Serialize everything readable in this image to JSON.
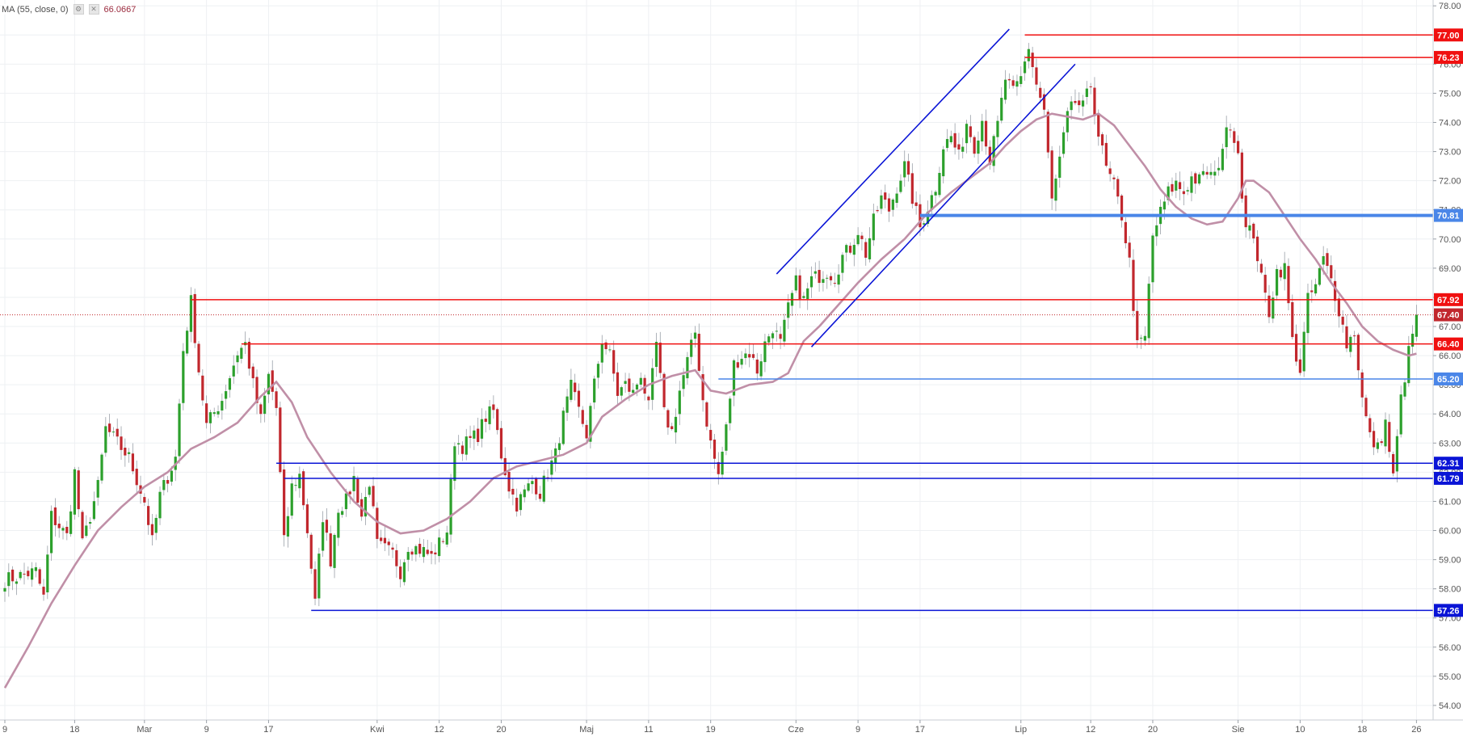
{
  "indicator": {
    "label": "MA (55, close, 0)",
    "value": "66.0667",
    "settings_icon": "gear-icon",
    "close_icon": "close-icon"
  },
  "colors": {
    "bull": "#2ca02c",
    "bear": "#c1272d",
    "ma": "#c08fa7",
    "resistance": "#f01010",
    "support": "#0a14d6",
    "support_light": "#4a86e8",
    "current_price_line": "#c1272d"
  },
  "chart_data": {
    "type": "candlestick",
    "title": "",
    "xlabel": "",
    "ylabel": "",
    "ylim": [
      53.5,
      78.2
    ],
    "y_ticks": [
      54,
      55,
      56,
      57,
      58,
      59,
      60,
      61,
      62,
      63,
      64,
      65,
      66,
      67,
      68,
      69,
      70,
      71,
      72,
      73,
      74,
      75,
      76,
      77,
      78
    ],
    "y_tick_labels": [
      "54.00",
      "55.00",
      "56.00",
      "57.00",
      "58.00",
      "59.00",
      "60.00",
      "61.00",
      "62.00",
      "63.00",
      "64.00",
      "65.00",
      "66.00",
      "67.00",
      "68.00",
      "69.00",
      "70.00",
      "71.00",
      "72.00",
      "73.00",
      "74.00",
      "75.00",
      "76.00",
      "77.00",
      "78.00"
    ],
    "x_ticks": [
      {
        "label": "9",
        "day": 0
      },
      {
        "label": "18",
        "day": 9
      },
      {
        "label": "Mar",
        "day": 18
      },
      {
        "label": "9",
        "day": 26
      },
      {
        "label": "17",
        "day": 34
      },
      {
        "label": "Kwi",
        "day": 48
      },
      {
        "label": "12",
        "day": 56
      },
      {
        "label": "20",
        "day": 64
      },
      {
        "label": "Maj",
        "day": 75
      },
      {
        "label": "11",
        "day": 83
      },
      {
        "label": "19",
        "day": 91
      },
      {
        "label": "Cze",
        "day": 102
      },
      {
        "label": "9",
        "day": 110
      },
      {
        "label": "17",
        "day": 118
      },
      {
        "label": "Lip",
        "day": 131
      },
      {
        "label": "12",
        "day": 140
      },
      {
        "label": "20",
        "day": 148
      },
      {
        "label": "Sie",
        "day": 159
      },
      {
        "label": "10",
        "day": 167
      },
      {
        "label": "18",
        "day": 175
      },
      {
        "label": "26",
        "day": 182
      }
    ],
    "x_range": [
      0,
      183
    ],
    "close_path": [
      [
        0,
        58.3
      ],
      [
        4,
        58.6
      ],
      [
        5,
        57.7
      ],
      [
        6,
        60.5
      ],
      [
        8,
        59.8
      ],
      [
        9,
        62.0
      ],
      [
        10,
        59.5
      ],
      [
        12,
        61.5
      ],
      [
        13,
        63.5
      ],
      [
        16,
        62.5
      ],
      [
        18,
        61.0
      ],
      [
        19,
        59.6
      ],
      [
        20,
        61.2
      ],
      [
        22,
        62.5
      ],
      [
        23,
        66.2
      ],
      [
        24,
        67.85
      ],
      [
        25,
        65.5
      ],
      [
        26,
        63.6
      ],
      [
        28,
        64.5
      ],
      [
        30,
        66.1
      ],
      [
        31,
        66.4
      ],
      [
        32,
        65.0
      ],
      [
        33,
        63.8
      ],
      [
        34,
        65.3
      ],
      [
        35,
        64.2
      ],
      [
        36,
        59.6
      ],
      [
        37,
        61.5
      ],
      [
        38,
        61.9
      ],
      [
        39,
        60.0
      ],
      [
        40,
        57.5
      ],
      [
        41,
        60.5
      ],
      [
        42,
        59.0
      ],
      [
        43,
        60.8
      ],
      [
        44,
        61.0
      ],
      [
        45,
        61.8
      ],
      [
        46,
        60.5
      ],
      [
        47,
        61.7
      ],
      [
        48,
        59.5
      ],
      [
        50,
        59.2
      ],
      [
        51,
        58.6
      ],
      [
        52,
        59.5
      ],
      [
        54,
        59.3
      ],
      [
        55,
        59.1
      ],
      [
        57,
        60.0
      ],
      [
        58,
        63.1
      ],
      [
        59,
        62.9
      ],
      [
        61,
        63.3
      ],
      [
        62,
        63.9
      ],
      [
        63,
        64.1
      ],
      [
        64,
        62.6
      ],
      [
        65,
        61.5
      ],
      [
        66,
        60.9
      ],
      [
        68,
        61.7
      ],
      [
        69,
        61.3
      ],
      [
        70,
        62.0
      ],
      [
        71,
        62.6
      ],
      [
        72,
        63.9
      ],
      [
        73,
        64.9
      ],
      [
        74,
        64.1
      ],
      [
        75,
        63.3
      ],
      [
        76,
        65.0
      ],
      [
        77,
        66.55
      ],
      [
        78,
        66.0
      ],
      [
        79,
        64.7
      ],
      [
        80,
        65.0
      ],
      [
        81,
        64.7
      ],
      [
        82,
        65.4
      ],
      [
        83,
        64.2
      ],
      [
        84,
        66.4
      ],
      [
        85,
        64.0
      ],
      [
        86,
        63.4
      ],
      [
        87,
        64.8
      ],
      [
        88,
        65.8
      ],
      [
        89,
        66.8
      ],
      [
        90,
        64.5
      ],
      [
        91,
        63.0
      ],
      [
        92,
        61.9
      ],
      [
        93,
        63.5
      ],
      [
        94,
        65.7
      ],
      [
        95,
        66.0
      ],
      [
        96,
        66.1
      ],
      [
        97,
        65.5
      ],
      [
        98,
        66.4
      ],
      [
        99,
        67.0
      ],
      [
        100,
        66.4
      ],
      [
        101,
        67.6
      ],
      [
        102,
        68.5
      ],
      [
        103,
        67.9
      ],
      [
        104,
        68.6
      ],
      [
        106,
        68.9
      ],
      [
        107,
        68.7
      ],
      [
        108,
        69.4
      ],
      [
        109,
        69.7
      ],
      [
        110,
        70.3
      ],
      [
        111,
        69.5
      ],
      [
        112,
        70.6
      ],
      [
        113,
        71.4
      ],
      [
        114,
        71.0
      ],
      [
        115,
        71.8
      ],
      [
        116,
        72.5
      ],
      [
        117,
        71.4
      ],
      [
        118,
        70.4
      ],
      [
        119,
        71.1
      ],
      [
        120,
        71.8
      ],
      [
        121,
        73.2
      ],
      [
        122,
        73.5
      ],
      [
        123,
        72.8
      ],
      [
        124,
        74.0
      ],
      [
        125,
        73.2
      ],
      [
        126,
        74.1
      ],
      [
        127,
        72.7
      ],
      [
        128,
        73.9
      ],
      [
        129,
        75.5
      ],
      [
        130,
        75.0
      ],
      [
        131,
        75.5
      ],
      [
        132,
        76.6
      ],
      [
        133,
        75.3
      ],
      [
        134,
        74.4
      ],
      [
        135,
        71.3
      ],
      [
        136,
        72.7
      ],
      [
        137,
        74.2
      ],
      [
        138,
        74.7
      ],
      [
        139,
        74.5
      ],
      [
        140,
        75.3
      ],
      [
        141,
        73.6
      ],
      [
        142,
        72.4
      ],
      [
        143,
        71.8
      ],
      [
        144,
        70.8
      ],
      [
        145,
        69.2
      ],
      [
        146,
        66.3
      ],
      [
        147,
        66.6
      ],
      [
        148,
        70.1
      ],
      [
        149,
        70.9
      ],
      [
        150,
        71.6
      ],
      [
        151,
        71.9
      ],
      [
        152,
        71.6
      ],
      [
        153,
        72.1
      ],
      [
        154,
        72.0
      ],
      [
        155,
        72.3
      ],
      [
        156,
        72.1
      ],
      [
        157,
        73.2
      ],
      [
        158,
        74.0
      ],
      [
        159,
        73.0
      ],
      [
        160,
        70.3
      ],
      [
        161,
        70.2
      ],
      [
        162,
        68.6
      ],
      [
        163,
        67.5
      ],
      [
        164,
        68.9
      ],
      [
        165,
        69.0
      ],
      [
        166,
        66.5
      ],
      [
        167,
        65.5
      ],
      [
        168,
        67.9
      ],
      [
        169,
        68.4
      ],
      [
        170,
        69.3
      ],
      [
        171,
        68.6
      ],
      [
        172,
        67.6
      ],
      [
        173,
        66.4
      ],
      [
        174,
        66.8
      ],
      [
        175,
        64.5
      ],
      [
        176,
        63.2
      ],
      [
        177,
        62.8
      ],
      [
        178,
        63.7
      ],
      [
        179,
        61.8
      ],
      [
        180,
        64.5
      ],
      [
        181,
        66.1
      ],
      [
        182,
        67.4
      ]
    ],
    "ma_path": [
      [
        0,
        54.6
      ],
      [
        3,
        56.0
      ],
      [
        6,
        57.5
      ],
      [
        9,
        58.8
      ],
      [
        12,
        60.0
      ],
      [
        15,
        60.8
      ],
      [
        18,
        61.5
      ],
      [
        21,
        62.0
      ],
      [
        24,
        62.8
      ],
      [
        27,
        63.2
      ],
      [
        30,
        63.7
      ],
      [
        33,
        64.6
      ],
      [
        35,
        65.1
      ],
      [
        37,
        64.4
      ],
      [
        39,
        63.2
      ],
      [
        42,
        62.0
      ],
      [
        45,
        61.0
      ],
      [
        48,
        60.3
      ],
      [
        51,
        59.9
      ],
      [
        54,
        60.0
      ],
      [
        57,
        60.4
      ],
      [
        60,
        61.0
      ],
      [
        63,
        61.8
      ],
      [
        66,
        62.2
      ],
      [
        69,
        62.4
      ],
      [
        72,
        62.6
      ],
      [
        75,
        63.0
      ],
      [
        77,
        63.9
      ],
      [
        80,
        64.5
      ],
      [
        83,
        65.0
      ],
      [
        86,
        65.3
      ],
      [
        89,
        65.5
      ],
      [
        91,
        64.8
      ],
      [
        93,
        64.7
      ],
      [
        96,
        65.0
      ],
      [
        99,
        65.1
      ],
      [
        101,
        65.4
      ],
      [
        103,
        66.5
      ],
      [
        105,
        67.0
      ],
      [
        107,
        67.6
      ],
      [
        110,
        68.5
      ],
      [
        113,
        69.3
      ],
      [
        116,
        70.0
      ],
      [
        119,
        70.9
      ],
      [
        122,
        71.6
      ],
      [
        125,
        72.2
      ],
      [
        127,
        72.6
      ],
      [
        129,
        73.2
      ],
      [
        131,
        73.7
      ],
      [
        133,
        74.1
      ],
      [
        135,
        74.3
      ],
      [
        137,
        74.2
      ],
      [
        139,
        74.1
      ],
      [
        141,
        74.3
      ],
      [
        143,
        73.9
      ],
      [
        145,
        73.2
      ],
      [
        147,
        72.5
      ],
      [
        149,
        71.7
      ],
      [
        151,
        71.1
      ],
      [
        153,
        70.7
      ],
      [
        155,
        70.5
      ],
      [
        157,
        70.6
      ],
      [
        159,
        71.4
      ],
      [
        160,
        72.0
      ],
      [
        161,
        72.0
      ],
      [
        163,
        71.6
      ],
      [
        165,
        70.8
      ],
      [
        167,
        70.0
      ],
      [
        169,
        69.3
      ],
      [
        171,
        68.5
      ],
      [
        173,
        67.8
      ],
      [
        175,
        67.0
      ],
      [
        177,
        66.5
      ],
      [
        179,
        66.2
      ],
      [
        181,
        66.0
      ],
      [
        182,
        66.07
      ]
    ],
    "horizontal_levels": [
      {
        "price": 77.0,
        "label": "77.00",
        "kind": "resistance",
        "from_day": 131.5,
        "width": 1.5
      },
      {
        "price": 76.23,
        "label": "76.23",
        "kind": "resistance",
        "from_day": 131.5,
        "width": 1.5
      },
      {
        "price": 70.81,
        "label": "70.81",
        "kind": "support_light",
        "from_day": 118,
        "width": 4
      },
      {
        "price": 67.92,
        "label": "67.92",
        "kind": "resistance",
        "from_day": 24,
        "width": 1.5
      },
      {
        "price": 66.4,
        "label": "66.40",
        "kind": "resistance",
        "from_day": 30.5,
        "width": 1.5
      },
      {
        "price": 65.2,
        "label": "65.20",
        "kind": "support_light",
        "from_day": 92,
        "width": 1.5
      },
      {
        "price": 62.31,
        "label": "62.31",
        "kind": "support",
        "from_day": 35,
        "width": 1.5
      },
      {
        "price": 61.79,
        "label": "61.79",
        "kind": "support",
        "from_day": 36,
        "width": 1.5
      },
      {
        "price": 57.26,
        "label": "57.26",
        "kind": "support",
        "from_day": 39.5,
        "width": 1.5
      }
    ],
    "current_price": {
      "price": 67.4,
      "label": "67.40"
    },
    "trend_channel": [
      {
        "from": [
          99.5,
          68.8
        ],
        "to": [
          129.5,
          77.2
        ]
      },
      {
        "from": [
          104,
          66.3
        ],
        "to": [
          138,
          76.0
        ]
      }
    ]
  }
}
